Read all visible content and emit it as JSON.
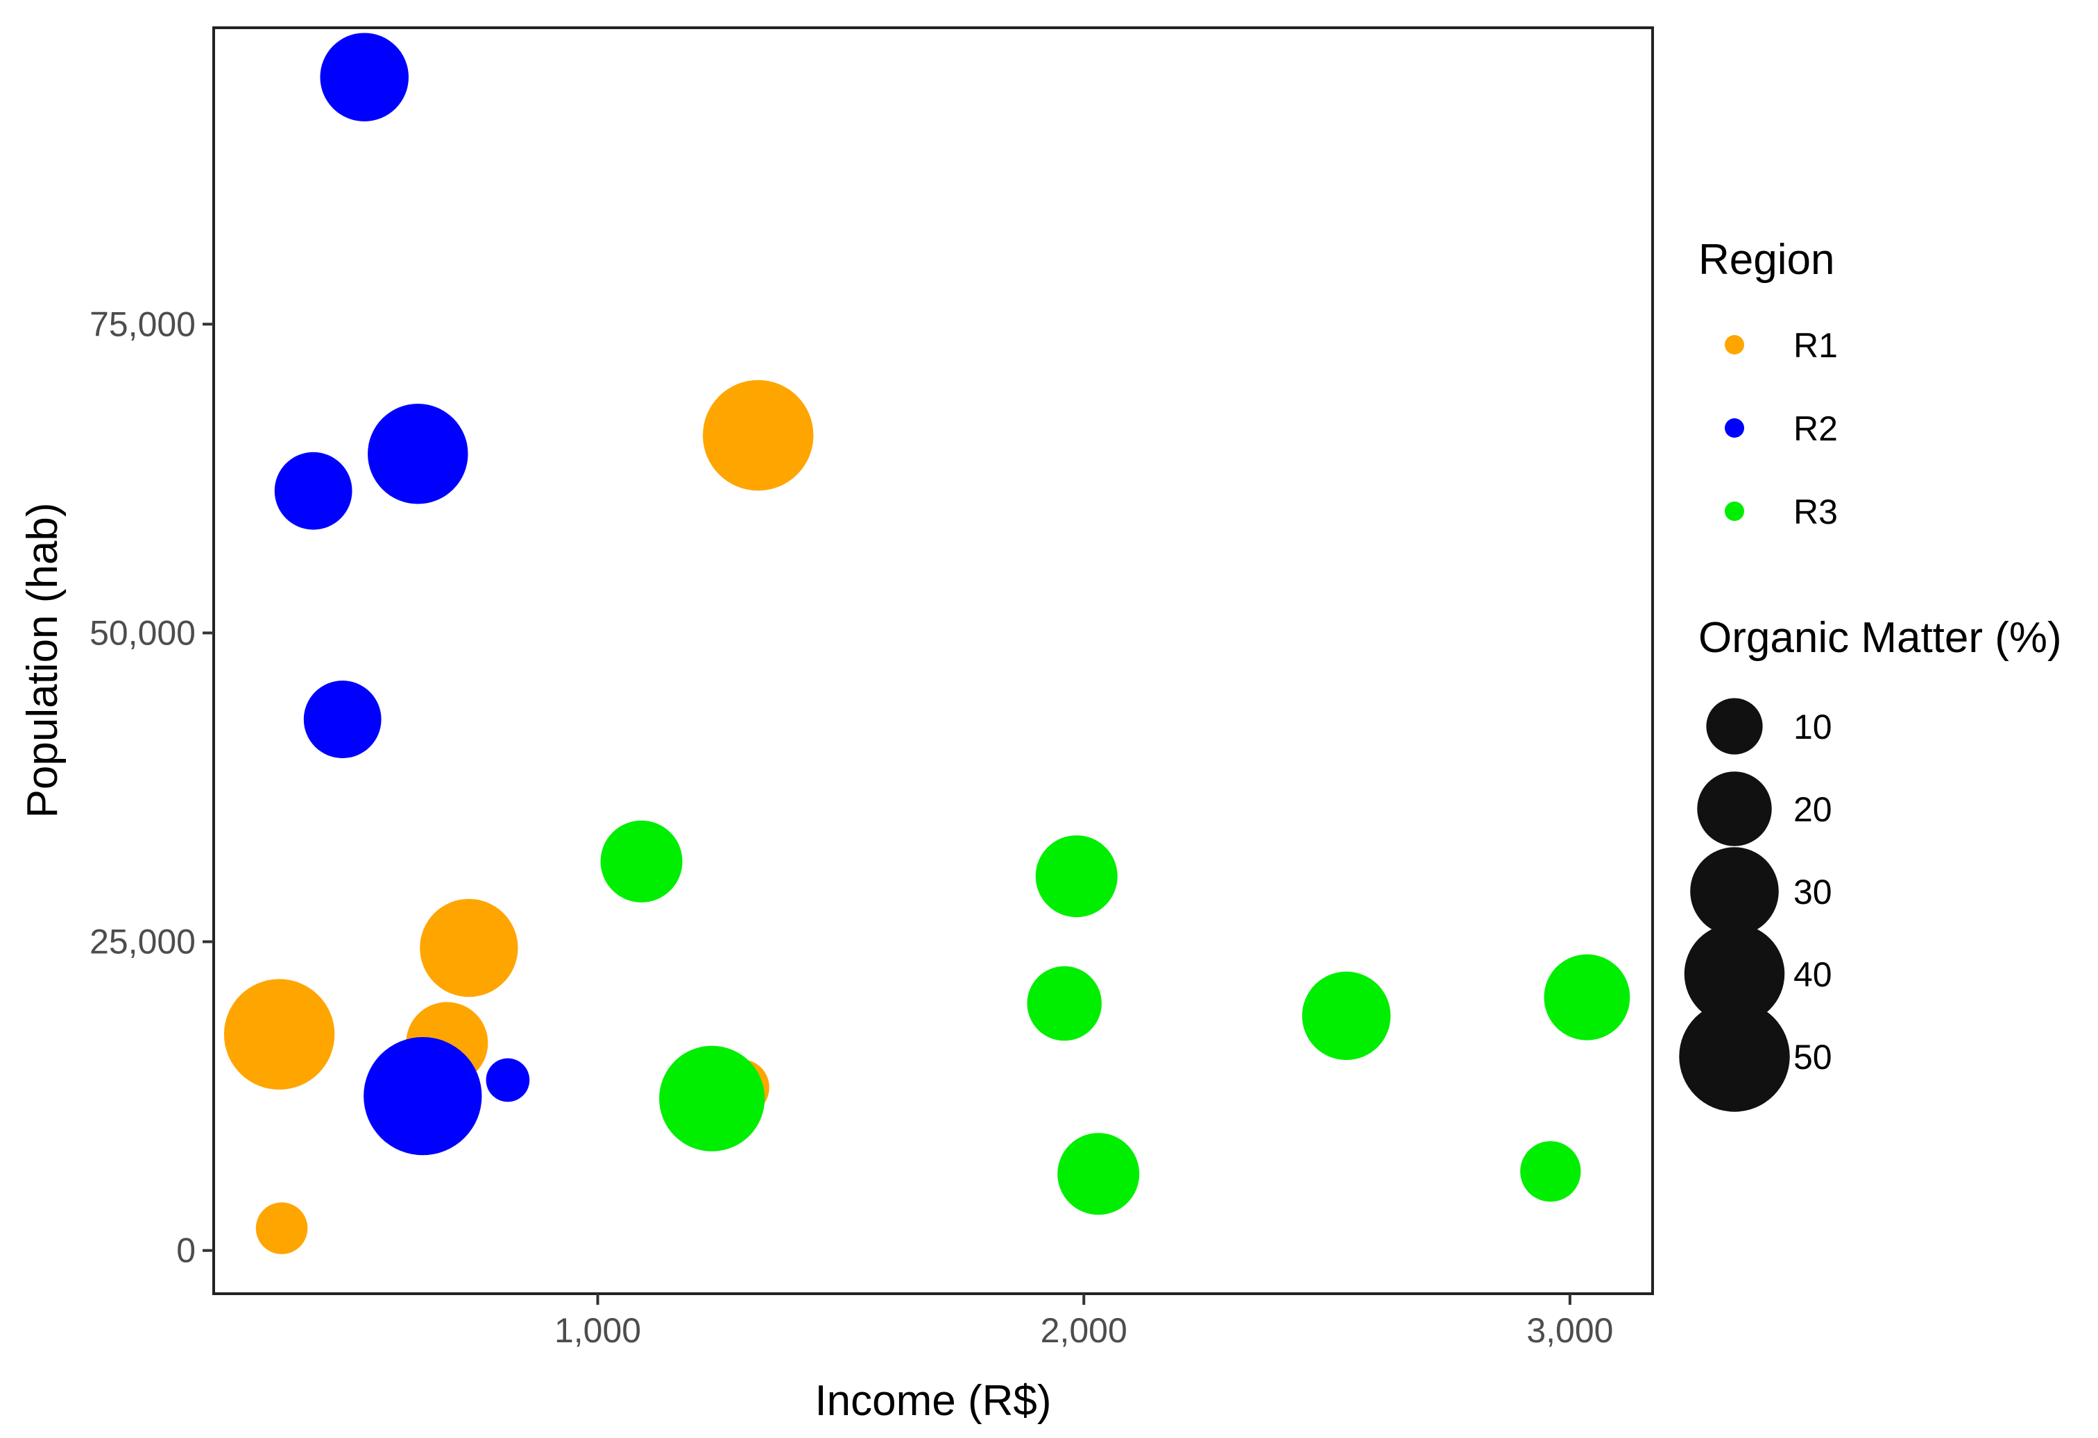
{
  "chart_data": {
    "type": "scatter",
    "title": "",
    "xlabel": "Income (R$)",
    "ylabel": "Population (hab)",
    "xlim": [
      210,
      3170
    ],
    "ylim": [
      -3500,
      99000
    ],
    "x_ticks": [
      {
        "value": 1000,
        "label": "1,000"
      },
      {
        "value": 2000,
        "label": "2,000"
      },
      {
        "value": 3000,
        "label": "3,000"
      }
    ],
    "y_ticks": [
      {
        "value": 0,
        "label": "0"
      },
      {
        "value": 25000,
        "label": "25,000"
      },
      {
        "value": 50000,
        "label": "50,000"
      },
      {
        "value": 75000,
        "label": "75,000"
      }
    ],
    "grid": false,
    "legend_position": "right",
    "color_legend": {
      "title": "Region",
      "entries": [
        {
          "label": "R1",
          "color": "#FFA500"
        },
        {
          "label": "R2",
          "color": "#0000FF"
        },
        {
          "label": "R3",
          "color": "#00EE00"
        }
      ]
    },
    "size_legend": {
      "title": "Organic Matter (%)",
      "color": "#111111",
      "entries": [
        {
          "label": "10",
          "value": 10
        },
        {
          "label": "20",
          "value": 20
        },
        {
          "label": "30",
          "value": 30
        },
        {
          "label": "40",
          "value": 40
        },
        {
          "label": "50",
          "value": 50
        }
      ]
    },
    "series": [
      {
        "name": "R1",
        "points": [
          {
            "x": 345,
            "y": 17500,
            "size": 50
          },
          {
            "x": 350,
            "y": 1800,
            "size": 8
          },
          {
            "x": 690,
            "y": 16800,
            "size": 25
          },
          {
            "x": 735,
            "y": 24500,
            "size": 38
          },
          {
            "x": 1295,
            "y": 13200,
            "size": 10
          },
          {
            "x": 1330,
            "y": 66000,
            "size": 50
          }
        ]
      },
      {
        "name": "R2",
        "points": [
          {
            "x": 520,
            "y": 95000,
            "size": 30
          },
          {
            "x": 415,
            "y": 61500,
            "size": 22
          },
          {
            "x": 475,
            "y": 43000,
            "size": 22
          },
          {
            "x": 630,
            "y": 64500,
            "size": 40
          },
          {
            "x": 640,
            "y": 12500,
            "size": 58
          },
          {
            "x": 815,
            "y": 13800,
            "size": 5
          }
        ]
      },
      {
        "name": "R3",
        "points": [
          {
            "x": 1090,
            "y": 31500,
            "size": 25
          },
          {
            "x": 1235,
            "y": 12300,
            "size": 45
          },
          {
            "x": 1960,
            "y": 20000,
            "size": 20
          },
          {
            "x": 1985,
            "y": 30300,
            "size": 25
          },
          {
            "x": 2030,
            "y": 6200,
            "size": 25
          },
          {
            "x": 2540,
            "y": 19000,
            "size": 30
          },
          {
            "x": 2960,
            "y": 6400,
            "size": 12
          },
          {
            "x": 3035,
            "y": 20500,
            "size": 28
          }
        ]
      }
    ]
  }
}
